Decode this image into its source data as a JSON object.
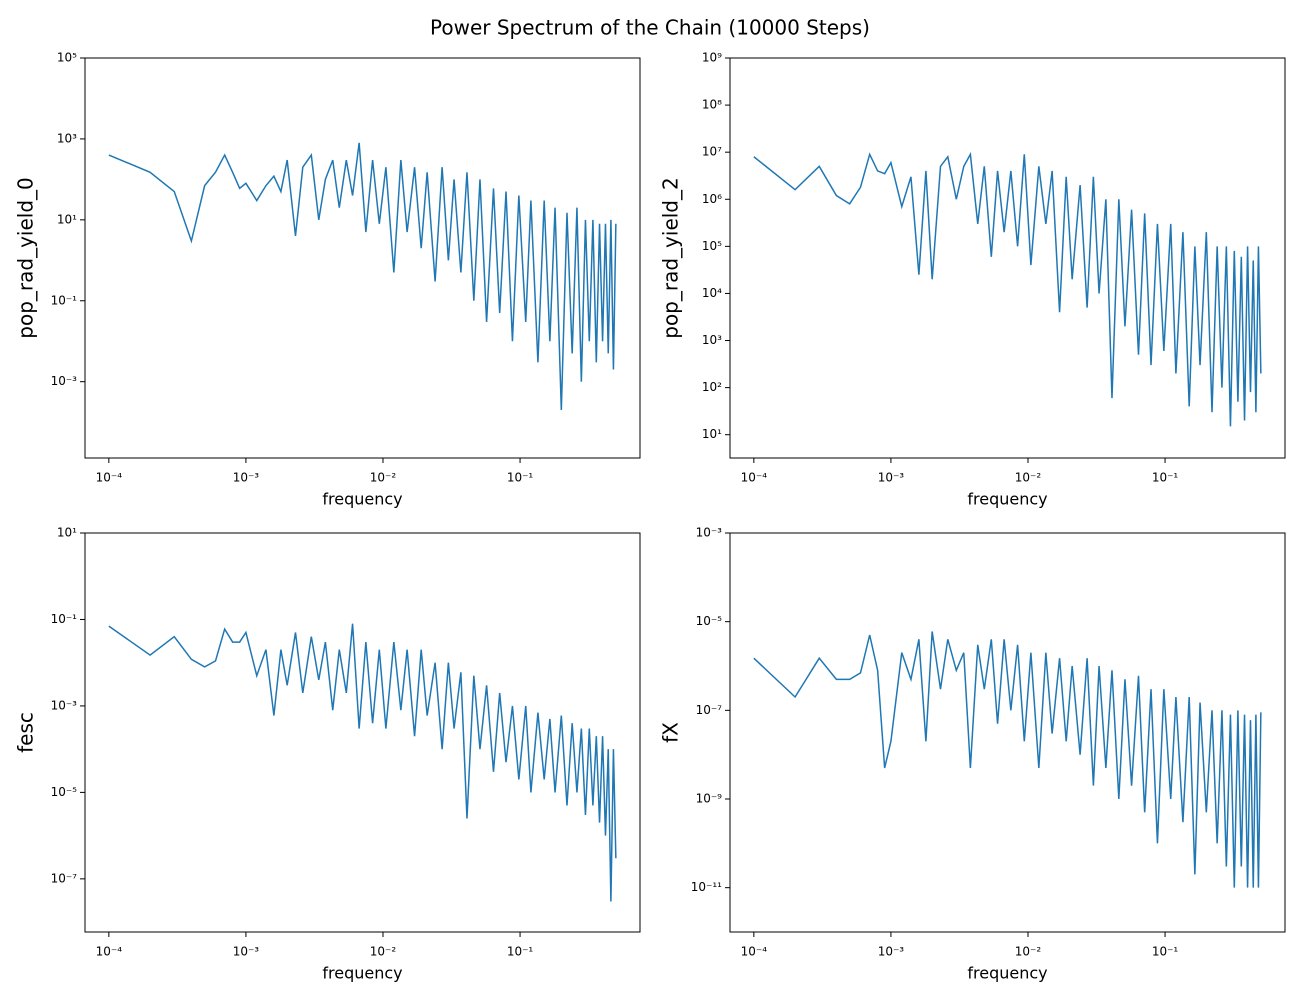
{
  "title": "Power Spectrum of the Chain (10000 Steps)",
  "chart_data": [
    {
      "type": "line",
      "xlabel": "frequency",
      "ylabel": "pop_rad_yield_0",
      "xscale": "log",
      "yscale": "log",
      "color": "#1f77b4",
      "xlim": [
        6.7e-05,
        0.75
      ],
      "ylim": [
        1.3e-05,
        100000
      ],
      "xticks": [
        {
          "value": 0.0001,
          "label": "10⁻⁴"
        },
        {
          "value": 0.001,
          "label": "10⁻³"
        },
        {
          "value": 0.01,
          "label": "10⁻²"
        },
        {
          "value": 0.1,
          "label": "10⁻¹"
        }
      ],
      "yticks": [
        {
          "value": 0.001,
          "label": "10⁻³"
        },
        {
          "value": 0.1,
          "label": "10⁻¹"
        },
        {
          "value": 10,
          "label": "10¹"
        },
        {
          "value": 1000,
          "label": "10³"
        },
        {
          "value": 100000,
          "label": "10⁵"
        }
      ],
      "x": [
        0.0001,
        0.0002,
        0.0003,
        0.0004,
        0.0005,
        0.0006,
        0.0007,
        0.0008,
        0.0009,
        0.001,
        0.0012,
        0.0014,
        0.0016,
        0.0018,
        0.002,
        0.0023,
        0.0026,
        0.003,
        0.0034,
        0.0038,
        0.0043,
        0.0048,
        0.0054,
        0.006,
        0.0067,
        0.0075,
        0.0084,
        0.0094,
        0.0105,
        0.012,
        0.0135,
        0.015,
        0.017,
        0.019,
        0.021,
        0.024,
        0.027,
        0.03,
        0.033,
        0.037,
        0.041,
        0.046,
        0.051,
        0.057,
        0.064,
        0.071,
        0.079,
        0.088,
        0.098,
        0.11,
        0.12,
        0.135,
        0.15,
        0.165,
        0.18,
        0.2,
        0.22,
        0.24,
        0.26,
        0.28,
        0.3,
        0.32,
        0.34,
        0.36,
        0.38,
        0.4,
        0.42,
        0.44,
        0.46,
        0.48,
        0.5
      ],
      "values": [
        400,
        150,
        50,
        3,
        70,
        150,
        400,
        150,
        60,
        80,
        30,
        70,
        120,
        50,
        300,
        4,
        200,
        400,
        10,
        100,
        300,
        20,
        300,
        40,
        800,
        5,
        300,
        8,
        200,
        0.5,
        300,
        5,
        200,
        2,
        150,
        0.3,
        200,
        1,
        100,
        0.5,
        150,
        0.1,
        100,
        0.03,
        60,
        0.05,
        50,
        0.01,
        40,
        0.03,
        30,
        0.003,
        30,
        0.01,
        20,
        0.0002,
        15,
        0.005,
        20,
        0.001,
        10,
        0.01,
        10,
        0.003,
        8,
        0.01,
        8,
        0.005,
        10,
        0.002,
        8
      ]
    },
    {
      "type": "line",
      "xlabel": "frequency",
      "ylabel": "pop_rad_yield_2",
      "xscale": "log",
      "yscale": "log",
      "color": "#1f77b4",
      "xlim": [
        6.7e-05,
        0.75
      ],
      "ylim": [
        3.2,
        1000000000
      ],
      "xticks": [
        {
          "value": 0.0001,
          "label": "10⁻⁴"
        },
        {
          "value": 0.001,
          "label": "10⁻³"
        },
        {
          "value": 0.01,
          "label": "10⁻²"
        },
        {
          "value": 0.1,
          "label": "10⁻¹"
        }
      ],
      "yticks": [
        {
          "value": 10,
          "label": "10¹"
        },
        {
          "value": 100,
          "label": "10²"
        },
        {
          "value": 1000,
          "label": "10³"
        },
        {
          "value": 10000,
          "label": "10⁴"
        },
        {
          "value": 100000,
          "label": "10⁵"
        },
        {
          "value": 1000000,
          "label": "10⁶"
        },
        {
          "value": 10000000,
          "label": "10⁷"
        },
        {
          "value": 100000000,
          "label": "10⁸"
        },
        {
          "value": 1000000000,
          "label": "10⁹"
        }
      ],
      "x": [
        0.0001,
        0.0002,
        0.0003,
        0.0004,
        0.0005,
        0.0006,
        0.0007,
        0.0008,
        0.0009,
        0.001,
        0.0012,
        0.0014,
        0.0016,
        0.0018,
        0.002,
        0.0023,
        0.0026,
        0.003,
        0.0034,
        0.0038,
        0.0043,
        0.0048,
        0.0054,
        0.006,
        0.0067,
        0.0075,
        0.0084,
        0.0094,
        0.0105,
        0.012,
        0.0135,
        0.015,
        0.017,
        0.019,
        0.021,
        0.024,
        0.027,
        0.03,
        0.033,
        0.037,
        0.041,
        0.046,
        0.051,
        0.057,
        0.064,
        0.071,
        0.079,
        0.088,
        0.098,
        0.11,
        0.12,
        0.135,
        0.15,
        0.165,
        0.18,
        0.2,
        0.22,
        0.24,
        0.26,
        0.28,
        0.3,
        0.32,
        0.34,
        0.36,
        0.38,
        0.4,
        0.42,
        0.44,
        0.46,
        0.48,
        0.5
      ],
      "values": [
        8000000,
        1600000,
        5000000,
        1200000,
        800000,
        1800000,
        9000000,
        4000000,
        3500000,
        6000000,
        700000,
        3000000,
        25000,
        4000000,
        20000,
        5000000,
        8000000,
        1000000,
        5000000,
        9000000,
        300000,
        5000000,
        60000,
        4000000,
        200000,
        4000000,
        100000,
        9000000,
        40000,
        5000000,
        300000,
        4000000,
        4000,
        3000000,
        20000,
        2000000,
        5000,
        3000000,
        10000,
        1000000,
        60,
        1000000,
        2000,
        600000,
        500,
        500000,
        300,
        300000,
        600,
        300000,
        200,
        200000,
        40,
        100000,
        300,
        200000,
        30,
        100000,
        100,
        100000,
        15,
        80000,
        50,
        60000,
        20,
        100000,
        80,
        50000,
        30,
        100000,
        200
      ]
    },
    {
      "type": "line",
      "xlabel": "frequency",
      "ylabel": "fesc",
      "xscale": "log",
      "yscale": "log",
      "color": "#1f77b4",
      "xlim": [
        6.7e-05,
        0.75
      ],
      "ylim": [
        5.9e-09,
        10
      ],
      "xticks": [
        {
          "value": 0.0001,
          "label": "10⁻⁴"
        },
        {
          "value": 0.001,
          "label": "10⁻³"
        },
        {
          "value": 0.01,
          "label": "10⁻²"
        },
        {
          "value": 0.1,
          "label": "10⁻¹"
        }
      ],
      "yticks": [
        {
          "value": 1e-07,
          "label": "10⁻⁷"
        },
        {
          "value": 1e-05,
          "label": "10⁻⁵"
        },
        {
          "value": 0.001,
          "label": "10⁻³"
        },
        {
          "value": 0.1,
          "label": "10⁻¹"
        },
        {
          "value": 10,
          "label": "10¹"
        }
      ],
      "x": [
        0.0001,
        0.0002,
        0.0003,
        0.0004,
        0.0005,
        0.0006,
        0.0007,
        0.0008,
        0.0009,
        0.001,
        0.0012,
        0.0014,
        0.0016,
        0.0018,
        0.002,
        0.0023,
        0.0026,
        0.003,
        0.0034,
        0.0038,
        0.0043,
        0.0048,
        0.0054,
        0.006,
        0.0067,
        0.0075,
        0.0084,
        0.0094,
        0.0105,
        0.012,
        0.0135,
        0.015,
        0.017,
        0.019,
        0.021,
        0.024,
        0.027,
        0.03,
        0.033,
        0.037,
        0.041,
        0.046,
        0.051,
        0.057,
        0.064,
        0.071,
        0.079,
        0.088,
        0.098,
        0.11,
        0.12,
        0.135,
        0.15,
        0.165,
        0.18,
        0.2,
        0.22,
        0.24,
        0.26,
        0.28,
        0.3,
        0.32,
        0.34,
        0.36,
        0.38,
        0.4,
        0.42,
        0.44,
        0.46,
        0.48,
        0.5
      ],
      "values": [
        0.07,
        0.015,
        0.04,
        0.012,
        0.008,
        0.011,
        0.06,
        0.03,
        0.03,
        0.05,
        0.005,
        0.02,
        0.0006,
        0.02,
        0.003,
        0.05,
        0.002,
        0.04,
        0.004,
        0.03,
        0.0008,
        0.02,
        0.002,
        0.08,
        0.0003,
        0.03,
        0.0004,
        0.02,
        0.0003,
        0.03,
        0.0008,
        0.02,
        0.0002,
        0.02,
        0.0006,
        0.01,
        0.0001,
        0.01,
        0.0003,
        0.006,
        2.5e-06,
        0.005,
        0.0001,
        0.003,
        3e-05,
        0.002,
        5e-05,
        0.001,
        2e-05,
        0.001,
        1e-05,
        0.0007,
        2e-05,
        0.0005,
        1e-05,
        0.0006,
        5e-06,
        0.0004,
        1e-05,
        0.0003,
        3e-06,
        0.0003,
        5e-06,
        0.0002,
        2e-06,
        0.0002,
        1e-06,
        0.0001,
        3e-08,
        0.0001,
        3e-07
      ]
    },
    {
      "type": "line",
      "xlabel": "frequency",
      "ylabel": "fX",
      "xscale": "log",
      "yscale": "log",
      "color": "#1f77b4",
      "xlim": [
        6.7e-05,
        0.75
      ],
      "ylim": [
        1e-12,
        0.001
      ],
      "xticks": [
        {
          "value": 0.0001,
          "label": "10⁻⁴"
        },
        {
          "value": 0.001,
          "label": "10⁻³"
        },
        {
          "value": 0.01,
          "label": "10⁻²"
        },
        {
          "value": 0.1,
          "label": "10⁻¹"
        }
      ],
      "yticks": [
        {
          "value": 1e-11,
          "label": "10⁻¹¹"
        },
        {
          "value": 1e-09,
          "label": "10⁻⁹"
        },
        {
          "value": 1e-07,
          "label": "10⁻⁷"
        },
        {
          "value": 1e-05,
          "label": "10⁻⁵"
        },
        {
          "value": 0.001,
          "label": "10⁻³"
        }
      ],
      "x": [
        0.0001,
        0.0002,
        0.0003,
        0.0004,
        0.0005,
        0.0006,
        0.0007,
        0.0008,
        0.0009,
        0.001,
        0.0012,
        0.0014,
        0.0016,
        0.0018,
        0.002,
        0.0023,
        0.0026,
        0.003,
        0.0034,
        0.0038,
        0.0043,
        0.0048,
        0.0054,
        0.006,
        0.0067,
        0.0075,
        0.0084,
        0.0094,
        0.0105,
        0.012,
        0.0135,
        0.015,
        0.017,
        0.019,
        0.021,
        0.024,
        0.027,
        0.03,
        0.033,
        0.037,
        0.041,
        0.046,
        0.051,
        0.057,
        0.064,
        0.071,
        0.079,
        0.088,
        0.098,
        0.11,
        0.12,
        0.135,
        0.15,
        0.165,
        0.18,
        0.2,
        0.22,
        0.24,
        0.26,
        0.28,
        0.3,
        0.32,
        0.34,
        0.36,
        0.38,
        0.4,
        0.42,
        0.44,
        0.46,
        0.48,
        0.5
      ],
      "values": [
        1.5e-06,
        2e-07,
        1.5e-06,
        5e-07,
        5e-07,
        7e-07,
        5e-06,
        8e-07,
        5e-09,
        2e-08,
        2e-06,
        5e-07,
        4e-06,
        2e-08,
        6e-06,
        3e-07,
        4e-06,
        8e-07,
        2e-06,
        5e-09,
        3e-06,
        3e-07,
        4e-06,
        5e-08,
        4e-06,
        1e-07,
        3e-06,
        2e-08,
        2e-06,
        5e-09,
        2e-06,
        3e-08,
        1.5e-06,
        2e-08,
        1e-06,
        1e-08,
        1.5e-06,
        2e-09,
        1e-06,
        5e-09,
        8e-07,
        1e-09,
        5e-07,
        2e-09,
        6e-07,
        5e-10,
        3e-07,
        1e-10,
        3e-07,
        1e-09,
        2e-07,
        3e-10,
        2e-07,
        2e-11,
        1.5e-07,
        5e-10,
        1e-07,
        1e-10,
        1e-07,
        3e-11,
        8e-08,
        1e-11,
        1e-07,
        3e-11,
        8e-08,
        1e-11,
        6e-08,
        1e-11,
        8e-08,
        1e-11,
        9e-08
      ]
    }
  ]
}
